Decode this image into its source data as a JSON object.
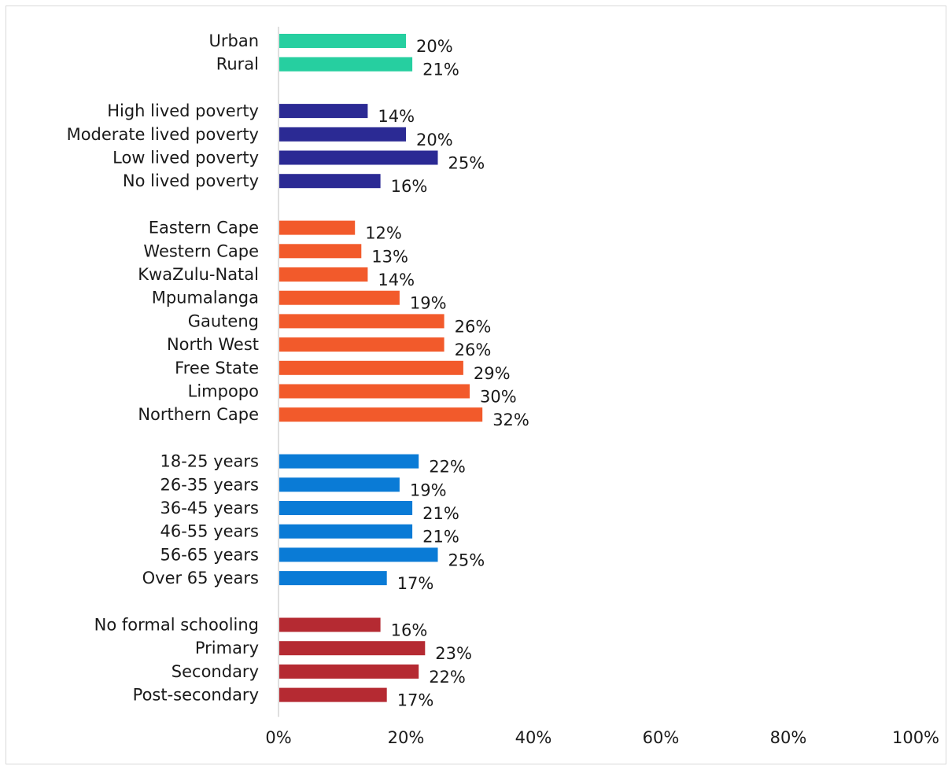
{
  "chart_data": {
    "type": "bar",
    "orientation": "horizontal",
    "xlim": [
      0,
      100
    ],
    "x_ticks": [
      "0%",
      "20%",
      "40%",
      "60%",
      "80%",
      "100%"
    ],
    "grid": false,
    "legend": "none",
    "groups": [
      {
        "color": "#26cfa0",
        "items": [
          {
            "label": "Urban",
            "value": 20,
            "value_label": "20%"
          },
          {
            "label": "Rural",
            "value": 21,
            "value_label": "21%"
          }
        ]
      },
      {
        "color": "#2b2a94",
        "items": [
          {
            "label": "High lived poverty",
            "value": 14,
            "value_label": "14%"
          },
          {
            "label": "Moderate lived poverty",
            "value": 20,
            "value_label": "20%"
          },
          {
            "label": "Low lived poverty",
            "value": 25,
            "value_label": "25%"
          },
          {
            "label": "No lived poverty",
            "value": 16,
            "value_label": "16%"
          }
        ]
      },
      {
        "color": "#f25a2b",
        "items": [
          {
            "label": "Eastern Cape",
            "value": 12,
            "value_label": "12%"
          },
          {
            "label": "Western Cape",
            "value": 13,
            "value_label": "13%"
          },
          {
            "label": "KwaZulu-Natal",
            "value": 14,
            "value_label": "14%"
          },
          {
            "label": "Mpumalanga",
            "value": 19,
            "value_label": "19%"
          },
          {
            "label": "Gauteng",
            "value": 26,
            "value_label": "26%"
          },
          {
            "label": "North West",
            "value": 26,
            "value_label": "26%"
          },
          {
            "label": "Free State",
            "value": 29,
            "value_label": "29%"
          },
          {
            "label": "Limpopo",
            "value": 30,
            "value_label": "30%"
          },
          {
            "label": "Northern Cape",
            "value": 32,
            "value_label": "32%"
          }
        ]
      },
      {
        "color": "#0a7bd6",
        "items": [
          {
            "label": "18-25 years",
            "value": 22,
            "value_label": "22%"
          },
          {
            "label": "26-35 years",
            "value": 19,
            "value_label": "19%"
          },
          {
            "label": "36-45 years",
            "value": 21,
            "value_label": "21%"
          },
          {
            "label": "46-55 years",
            "value": 21,
            "value_label": "21%"
          },
          {
            "label": "56-65 years",
            "value": 25,
            "value_label": "25%"
          },
          {
            "label": "Over 65 years",
            "value": 17,
            "value_label": "17%"
          }
        ]
      },
      {
        "color": "#b52a32",
        "items": [
          {
            "label": "No formal schooling",
            "value": 16,
            "value_label": "16%"
          },
          {
            "label": "Primary",
            "value": 23,
            "value_label": "23%"
          },
          {
            "label": "Secondary",
            "value": 22,
            "value_label": "22%"
          },
          {
            "label": "Post-secondary",
            "value": 17,
            "value_label": "17%"
          }
        ]
      }
    ]
  }
}
